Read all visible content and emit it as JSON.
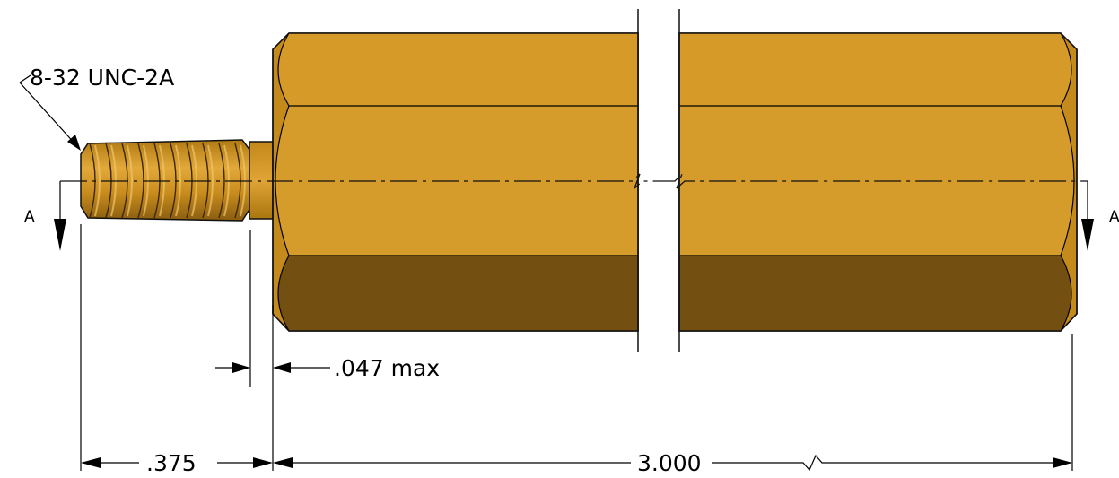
{
  "callouts": {
    "thread_spec": "8-32 UNC-2A",
    "gap_max": ".047 max"
  },
  "dimensions": {
    "thread_length": ".375",
    "body_length": "3.000"
  },
  "section": {
    "left_label": "A",
    "right_label": "A"
  },
  "colors": {
    "brass_light": "#d79a25",
    "brass_mid": "#c48a1c",
    "brass_dark": "#735012",
    "outline": "#111111"
  }
}
